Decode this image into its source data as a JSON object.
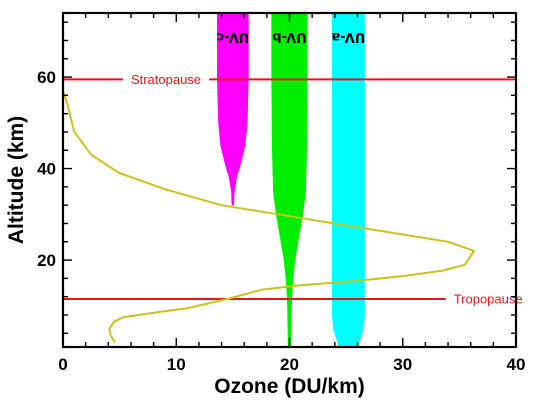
{
  "chart_data": {
    "type": "line",
    "title": "",
    "xlabel": "Ozone (DU/km)",
    "ylabel": "Altitude (km)",
    "xlim": [
      0,
      40
    ],
    "ylim": [
      1,
      74
    ],
    "xticks": [
      0,
      10,
      20,
      30,
      40
    ],
    "yticks": [
      20,
      40,
      60
    ],
    "ozone_profile": {
      "color": "#c8c41c",
      "points": [
        [
          4.6,
          2.0
        ],
        [
          4.2,
          3.5
        ],
        [
          4.1,
          5.0
        ],
        [
          4.5,
          6.5
        ],
        [
          5.3,
          7.5
        ],
        [
          8.0,
          8.5
        ],
        [
          11.0,
          9.5
        ],
        [
          14.5,
          11.5
        ],
        [
          17.5,
          13.5
        ],
        [
          21.0,
          14.5
        ],
        [
          26.0,
          15.5
        ],
        [
          30.0,
          16.5
        ],
        [
          33.5,
          17.7
        ],
        [
          35.5,
          19.0
        ],
        [
          36.3,
          22.0
        ],
        [
          34.0,
          24.0
        ],
        [
          29.0,
          26.0
        ],
        [
          24.0,
          28.0
        ],
        [
          19.0,
          30.0
        ],
        [
          14.0,
          32.0
        ],
        [
          9.0,
          35.5
        ],
        [
          5.0,
          39.0
        ],
        [
          2.5,
          43.0
        ],
        [
          1.0,
          48.0
        ],
        [
          0.4,
          54.0
        ],
        [
          0.0,
          57.0
        ]
      ]
    },
    "reference_lines": [
      {
        "label": "Stratopause",
        "altitude": 59.5,
        "color": "#e8141c",
        "label_x": 6.0
      },
      {
        "label": "Tropopause",
        "altitude": 11.5,
        "color": "#e8141c",
        "label_x": 34.5
      }
    ],
    "uv_bands": [
      {
        "label": "UV-c",
        "color": "#ff00ff",
        "center": 15.0,
        "profile": [
          [
            74,
            1.4
          ],
          [
            60,
            1.4
          ],
          [
            50,
            1.3
          ],
          [
            45,
            1.1
          ],
          [
            41,
            0.7
          ],
          [
            38,
            0.35
          ],
          [
            35,
            0.15
          ],
          [
            32,
            0.1
          ]
        ]
      },
      {
        "label": "UV-b",
        "color": "#00ee00",
        "center": 20.0,
        "profile": [
          [
            74,
            1.6
          ],
          [
            60,
            1.6
          ],
          [
            45,
            1.55
          ],
          [
            35,
            1.45
          ],
          [
            30,
            1.2
          ],
          [
            25,
            0.85
          ],
          [
            20,
            0.5
          ],
          [
            15,
            0.3
          ],
          [
            10,
            0.2
          ],
          [
            2,
            0.15
          ],
          [
            1,
            0.15
          ]
        ]
      },
      {
        "label": "UV-a",
        "color": "#00ffff",
        "center": 25.2,
        "profile": [
          [
            74,
            1.45
          ],
          [
            60,
            1.45
          ],
          [
            40,
            1.45
          ],
          [
            20,
            1.45
          ],
          [
            8,
            1.45
          ],
          [
            5,
            1.35
          ],
          [
            3,
            1.1
          ],
          [
            1.5,
            0.9
          ],
          [
            1,
            0.9
          ]
        ]
      }
    ]
  }
}
